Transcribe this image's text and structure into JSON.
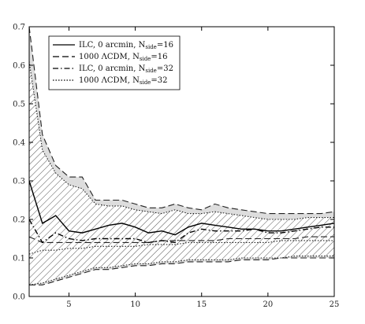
{
  "chart_data": {
    "type": "line",
    "title": "",
    "xlabel": "",
    "ylabel": "",
    "xlim": [
      2,
      25
    ],
    "ylim": [
      0.0,
      0.7
    ],
    "x_ticks": [
      5,
      10,
      15,
      20,
      25
    ],
    "y_ticks": [
      0.0,
      0.1,
      0.2,
      0.3,
      0.4,
      0.5,
      0.6,
      0.7
    ],
    "x_tick_labels": [
      "5",
      "10",
      "15",
      "20",
      "25"
    ],
    "y_tick_labels": [
      "0.0",
      "0.1",
      "0.2",
      "0.3",
      "0.4",
      "0.5",
      "0.6",
      "0.7"
    ],
    "grid": false,
    "legend_position": "top-left",
    "x": [
      2,
      3,
      4,
      5,
      6,
      7,
      8,
      9,
      10,
      11,
      12,
      13,
      14,
      15,
      16,
      17,
      18,
      19,
      20,
      21,
      22,
      23,
      24,
      25
    ],
    "series": [
      {
        "name": "ILC, 0 arcmin, N",
        "sub": "side",
        "suffix": "=16",
        "style": "solid",
        "values": [
          0.3,
          0.19,
          0.21,
          0.17,
          0.165,
          0.175,
          0.185,
          0.19,
          0.18,
          0.165,
          0.17,
          0.16,
          0.18,
          0.19,
          0.185,
          0.18,
          0.175,
          0.175,
          0.17,
          0.17,
          0.175,
          0.18,
          0.185,
          0.19
        ]
      },
      {
        "name": "1000 ΛCDM, N",
        "sub": "side",
        "suffix": "=16",
        "style": "dashed",
        "band": {
          "upper": [
            0.7,
            0.42,
            0.34,
            0.31,
            0.31,
            0.25,
            0.25,
            0.25,
            0.24,
            0.23,
            0.23,
            0.24,
            0.23,
            0.225,
            0.24,
            0.23,
            0.225,
            0.22,
            0.215,
            0.215,
            0.215,
            0.215,
            0.215,
            0.22
          ],
          "lower": [
            0.03,
            0.03,
            0.04,
            0.05,
            0.06,
            0.07,
            0.07,
            0.075,
            0.08,
            0.08,
            0.085,
            0.085,
            0.09,
            0.09,
            0.09,
            0.09,
            0.095,
            0.095,
            0.095,
            0.1,
            0.1,
            0.1,
            0.1,
            0.1
          ]
        },
        "mean": [
          0.155,
          0.14,
          0.14,
          0.14,
          0.14,
          0.14,
          0.14,
          0.14,
          0.14,
          0.14,
          0.145,
          0.145,
          0.145,
          0.145,
          0.145,
          0.15,
          0.15,
          0.15,
          0.15,
          0.15,
          0.15,
          0.155,
          0.155,
          0.155
        ]
      },
      {
        "name": "ILC, 0 arcmin, N",
        "sub": "side",
        "suffix": "=32",
        "style": "dashdot",
        "values": [
          0.2,
          0.14,
          0.165,
          0.15,
          0.145,
          0.15,
          0.15,
          0.15,
          0.15,
          0.14,
          0.145,
          0.14,
          0.165,
          0.175,
          0.17,
          0.17,
          0.17,
          0.175,
          0.165,
          0.165,
          0.17,
          0.175,
          0.18,
          0.18
        ]
      },
      {
        "name": "1000 ΛCDM, N",
        "sub": "side",
        "suffix": "=32",
        "style": "dotted",
        "band": {
          "upper": [
            0.61,
            0.38,
            0.32,
            0.29,
            0.28,
            0.24,
            0.235,
            0.235,
            0.225,
            0.22,
            0.215,
            0.225,
            0.215,
            0.215,
            0.22,
            0.215,
            0.21,
            0.205,
            0.2,
            0.2,
            0.2,
            0.205,
            0.205,
            0.205
          ],
          "lower": [
            0.03,
            0.035,
            0.045,
            0.055,
            0.065,
            0.075,
            0.075,
            0.08,
            0.085,
            0.085,
            0.09,
            0.09,
            0.095,
            0.095,
            0.095,
            0.095,
            0.1,
            0.1,
            0.1,
            0.1,
            0.105,
            0.105,
            0.105,
            0.105
          ]
        },
        "mean": [
          0.11,
          0.12,
          0.12,
          0.125,
          0.125,
          0.13,
          0.13,
          0.13,
          0.13,
          0.135,
          0.135,
          0.135,
          0.14,
          0.14,
          0.14,
          0.14,
          0.14,
          0.14,
          0.14,
          0.145,
          0.145,
          0.145,
          0.145,
          0.145
        ]
      }
    ],
    "colors": {
      "hatch": "#555555",
      "shade": "#dddddd",
      "axis": "#000000"
    }
  }
}
